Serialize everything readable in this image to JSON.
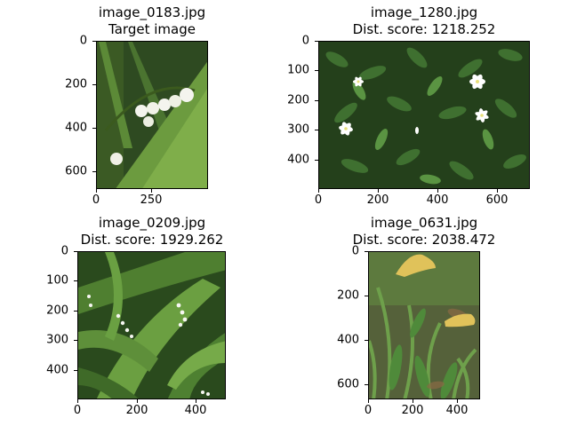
{
  "figure": {
    "panels": [
      {
        "filename": "image_0183.jpg",
        "caption": "Target image",
        "img_w": 300,
        "img_h": 680,
        "xticks": [
          0,
          250
        ],
        "yticks": [
          0,
          200,
          400,
          600
        ],
        "palette": [
          "#2f4a1f",
          "#6f9a3c",
          "#f4f4ee"
        ],
        "scene": "lily-of-the-valley"
      },
      {
        "filename": "image_1280.jpg",
        "caption": "Dist. score: 1218.252",
        "img_w": 710,
        "img_h": 500,
        "xticks": [
          0,
          200,
          400,
          600
        ],
        "yticks": [
          0,
          100,
          200,
          300,
          400
        ],
        "palette": [
          "#1c3316",
          "#3c6a2b",
          "#ffffff"
        ],
        "scene": "white-star-flowers"
      },
      {
        "filename": "image_0209.jpg",
        "caption": "Dist. score: 1929.262",
        "img_w": 500,
        "img_h": 500,
        "xticks": [
          0,
          200,
          400
        ],
        "yticks": [
          0,
          100,
          200,
          300,
          400
        ],
        "palette": [
          "#2a4a1d",
          "#5e8f3a",
          "#f7f7f2"
        ],
        "scene": "lily-of-the-valley-leaves"
      },
      {
        "filename": "image_0631.jpg",
        "caption": "Dist. score: 2038.472",
        "img_w": 380,
        "img_h": 670,
        "xticks": [
          0,
          200,
          400
        ],
        "yticks": [
          0,
          200,
          400,
          600
        ],
        "palette": [
          "#4a4a2e",
          "#5c8f40",
          "#e0c25a"
        ],
        "scene": "yellow-trout-lily"
      }
    ]
  },
  "chart_data": {
    "type": "image-grid",
    "images": [
      {
        "name": "image_0183.jpg",
        "label": "Target image",
        "width": 300,
        "height": 680
      },
      {
        "name": "image_1280.jpg",
        "label": "Dist. score: 1218.252",
        "score": 1218.252,
        "width": 710,
        "height": 500
      },
      {
        "name": "image_0209.jpg",
        "label": "Dist. score: 1929.262",
        "score": 1929.262,
        "width": 500,
        "height": 500
      },
      {
        "name": "image_0631.jpg",
        "label": "Dist. score: 2038.472",
        "score": 2038.472,
        "width": 380,
        "height": 670
      }
    ]
  }
}
